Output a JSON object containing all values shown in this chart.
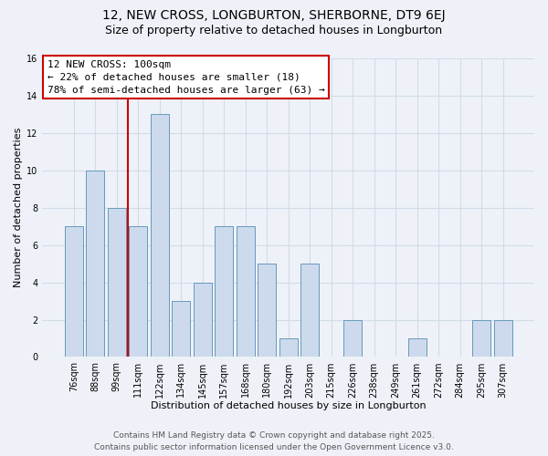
{
  "title": "12, NEW CROSS, LONGBURTON, SHERBORNE, DT9 6EJ",
  "subtitle": "Size of property relative to detached houses in Longburton",
  "xlabel": "Distribution of detached houses by size in Longburton",
  "ylabel": "Number of detached properties",
  "bar_labels": [
    "76sqm",
    "88sqm",
    "99sqm",
    "111sqm",
    "122sqm",
    "134sqm",
    "145sqm",
    "157sqm",
    "168sqm",
    "180sqm",
    "192sqm",
    "203sqm",
    "215sqm",
    "226sqm",
    "238sqm",
    "249sqm",
    "261sqm",
    "272sqm",
    "284sqm",
    "295sqm",
    "307sqm"
  ],
  "bar_values": [
    7,
    10,
    8,
    7,
    13,
    3,
    4,
    7,
    7,
    5,
    1,
    5,
    0,
    2,
    0,
    0,
    1,
    0,
    0,
    2,
    2
  ],
  "bar_color": "#cddaed",
  "bar_edge_color": "#6699bb",
  "grid_color": "#d0dce8",
  "background_color": "#eef2f8",
  "vline_color": "#cc0000",
  "annotation_title": "12 NEW CROSS: 100sqm",
  "annotation_line1": "← 22% of detached houses are smaller (18)",
  "annotation_line2": "78% of semi-detached houses are larger (63) →",
  "annotation_box_facecolor": "#ffffff",
  "annotation_box_edgecolor": "#cc0000",
  "ylim": [
    0,
    16
  ],
  "yticks": [
    0,
    2,
    4,
    6,
    8,
    10,
    12,
    14,
    16
  ],
  "footer1": "Contains HM Land Registry data © Crown copyright and database right 2025.",
  "footer2": "Contains public sector information licensed under the Open Government Licence v3.0.",
  "title_fontsize": 10,
  "subtitle_fontsize": 9,
  "axis_label_fontsize": 8,
  "tick_fontsize": 7,
  "annotation_fontsize": 8,
  "footer_fontsize": 6.5
}
